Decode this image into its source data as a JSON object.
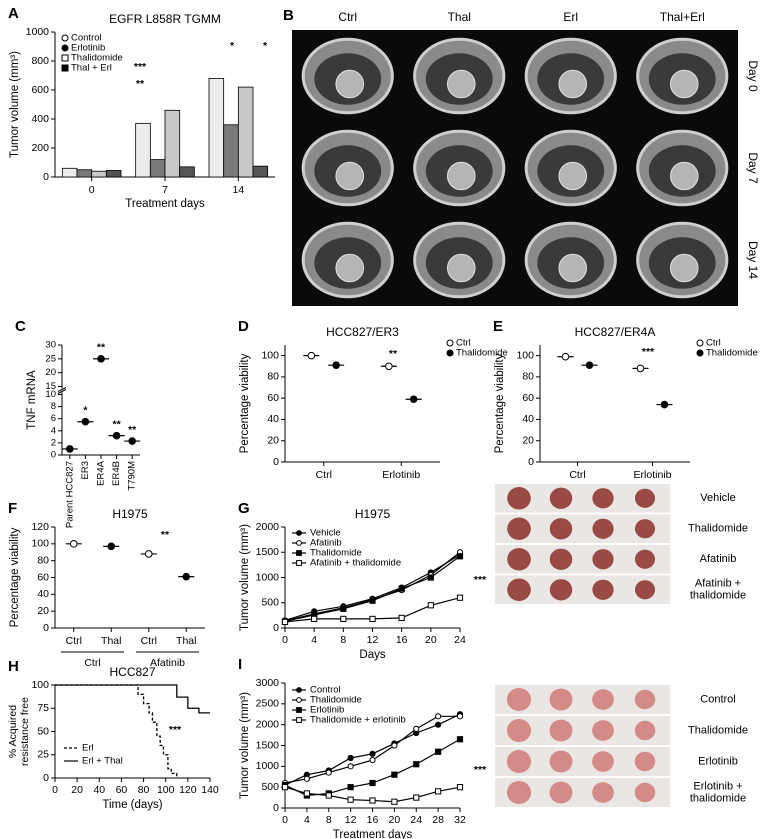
{
  "chart_data": [
    {
      "type": "bar",
      "label": "A",
      "title": "EGFR L858R TGMM",
      "x_label": "Treatment days",
      "y_label": "Tumor volume (mm³)",
      "categories": [
        "0",
        "7",
        "14"
      ],
      "series": [
        {
          "name": "Control",
          "color": "#ececec",
          "marker": "open circle",
          "values": [
            60,
            370,
            680
          ]
        },
        {
          "name": "Erlotinib",
          "color": "#7a7a7a",
          "marker": "filled circle",
          "values": [
            50,
            120,
            360
          ]
        },
        {
          "name": "Thalidomide",
          "color": "#c8c8c8",
          "marker": "open square",
          "values": [
            40,
            460,
            620
          ]
        },
        {
          "name": "Thal + Erl",
          "color": "#555555",
          "marker": "filled square",
          "values": [
            45,
            70,
            75
          ]
        }
      ],
      "ylim": [
        0,
        1000
      ],
      "yticks": [
        0,
        200,
        400,
        600,
        800,
        1000
      ],
      "annotations": [
        "***",
        "**",
        "*",
        "*"
      ]
    },
    {
      "type": "dot",
      "label": "C",
      "y_label": "TNF mRNA",
      "categories": [
        "Parent HCC827",
        "ER3",
        "ER4A",
        "ER4B",
        "T790M"
      ],
      "series": [
        {
          "color": "#000000",
          "marker": "filled circle",
          "values": [
            1,
            5.5,
            25,
            3.2,
            2.3
          ]
        }
      ],
      "significance": [
        null,
        "*",
        "**",
        "**",
        "**"
      ],
      "ylim": [
        0,
        30
      ],
      "axis_break": [
        10,
        15
      ],
      "yticks": [
        0,
        2,
        4,
        6,
        8,
        10,
        15,
        20,
        25,
        30
      ]
    },
    {
      "type": "dot",
      "label": "D",
      "title": "HCC827/ER3",
      "y_label": "Percentage viability",
      "categories": [
        "Ctrl",
        "Erlotinib"
      ],
      "series": [
        {
          "name": "Ctrl",
          "color": "#000000",
          "marker": "open circle",
          "values": [
            100,
            90
          ]
        },
        {
          "name": "Thalidomide",
          "color": "#000000",
          "marker": "filled circle",
          "values": [
            91,
            59
          ]
        }
      ],
      "ylim": [
        0,
        110
      ],
      "yticks": [
        0,
        20,
        40,
        60,
        80,
        100
      ],
      "annotations": [
        "**"
      ]
    },
    {
      "type": "dot",
      "label": "E",
      "title": "HCC827/ER4A",
      "y_label": "Percentage viability",
      "categories": [
        "Ctrl",
        "Erlotinib"
      ],
      "series": [
        {
          "name": "Ctrl",
          "color": "#000000",
          "marker": "open circle",
          "values": [
            99,
            88
          ]
        },
        {
          "name": "Thalidomide",
          "color": "#000000",
          "marker": "filled circle",
          "values": [
            91,
            54
          ]
        }
      ],
      "ylim": [
        0,
        110
      ],
      "yticks": [
        0,
        20,
        40,
        60,
        80,
        100
      ],
      "annotations": [
        "***"
      ]
    },
    {
      "type": "dot",
      "label": "F",
      "title": "H1975",
      "y_label": "Percentage viability",
      "categories": [
        "Ctrl",
        "Thal",
        "Ctrl",
        "Thal"
      ],
      "groups": [
        "Ctrl",
        "Afatinib"
      ],
      "series": [
        {
          "color": "#000000",
          "marker": "open circle",
          "values": [
            100,
            null,
            88,
            null
          ]
        },
        {
          "color": "#000000",
          "marker": "filled circle",
          "values": [
            null,
            97,
            null,
            61
          ]
        }
      ],
      "ylim": [
        0,
        120
      ],
      "yticks": [
        0,
        20,
        40,
        60,
        80,
        100,
        120
      ],
      "annotations": [
        "**"
      ]
    },
    {
      "type": "line",
      "label": "G",
      "title": "H1975",
      "x_label": "Days",
      "y_label": "Tumor volume (mm³)",
      "x": [
        0,
        4,
        8,
        12,
        16,
        20,
        24
      ],
      "series": [
        {
          "name": "Vehicle",
          "color": "#000000",
          "marker": "filled circle",
          "values": [
            150,
            330,
            430,
            580,
            800,
            1100,
            1450
          ]
        },
        {
          "name": "Afatinib",
          "color": "#000000",
          "marker": "open circle",
          "values": [
            140,
            280,
            400,
            560,
            750,
            1050,
            1500
          ]
        },
        {
          "name": "Thalidomide",
          "color": "#000000",
          "marker": "filled square",
          "values": [
            130,
            260,
            380,
            540,
            780,
            1000,
            1420
          ]
        },
        {
          "name": "Afatinib + thalidomide",
          "color": "#000000",
          "marker": "open square",
          "values": [
            120,
            180,
            180,
            180,
            200,
            450,
            600
          ]
        }
      ],
      "xlim": [
        0,
        24
      ],
      "xticks": [
        0,
        4,
        8,
        12,
        16,
        20,
        24
      ],
      "ylim": [
        0,
        2000
      ],
      "yticks": [
        0,
        500,
        1000,
        1500,
        2000
      ],
      "annotations": [
        "***"
      ]
    },
    {
      "type": "step",
      "label": "H",
      "title": "HCC827",
      "x_label": "Time (days)",
      "y_label": [
        "% Acquired",
        "resistance free"
      ],
      "series": [
        {
          "name": "Erl",
          "color": "#000000",
          "dashed": true,
          "x": [
            0,
            75,
            80,
            85,
            88,
            92,
            95,
            98,
            102,
            105,
            110
          ],
          "values": [
            100,
            90,
            80,
            70,
            60,
            45,
            35,
            25,
            10,
            5,
            0
          ]
        },
        {
          "name": "Erl + Thal",
          "color": "#000000",
          "dashed": false,
          "x": [
            0,
            110,
            120,
            130,
            140
          ],
          "values": [
            100,
            87,
            75,
            70,
            70
          ]
        }
      ],
      "xlim": [
        0,
        140
      ],
      "xticks": [
        0,
        20,
        40,
        60,
        80,
        100,
        120,
        140
      ],
      "ylim": [
        0,
        100
      ],
      "yticks": [
        0,
        25,
        50,
        75,
        100
      ],
      "annotations": [
        "***"
      ]
    },
    {
      "type": "line",
      "label": "I",
      "x_label": "Treatment days",
      "y_label": "Tumor volume (mm³)",
      "x": [
        0,
        4,
        8,
        12,
        16,
        20,
        24,
        28,
        32
      ],
      "series": [
        {
          "name": "Control",
          "color": "#000000",
          "marker": "filled circle",
          "values": [
            550,
            800,
            900,
            1200,
            1300,
            1550,
            1800,
            2000,
            2250
          ]
        },
        {
          "name": "Thalidomide",
          "color": "#000000",
          "marker": "open circle",
          "values": [
            600,
            700,
            850,
            1000,
            1150,
            1500,
            1900,
            2200,
            2200
          ]
        },
        {
          "name": "Erlotinib",
          "color": "#000000",
          "marker": "filled square",
          "values": [
            550,
            300,
            350,
            500,
            600,
            800,
            1050,
            1350,
            1650
          ]
        },
        {
          "name": "Thalidomide + erlotinib",
          "color": "#000000",
          "marker": "open square",
          "values": [
            500,
            350,
            300,
            200,
            180,
            150,
            250,
            400,
            500
          ]
        }
      ],
      "xlim": [
        0,
        32
      ],
      "xticks": [
        0,
        4,
        8,
        12,
        16,
        20,
        24,
        28,
        32
      ],
      "ylim": [
        0,
        3000
      ],
      "yticks": [
        0,
        500,
        1000,
        1500,
        2000,
        2500,
        3000
      ],
      "annotations": [
        "***"
      ]
    }
  ],
  "image_panels": [
    {
      "label": "B",
      "columns": [
        "Ctrl",
        "Thal",
        "Erl",
        "Thal+Erl"
      ],
      "rows": [
        [
          "Day 0"
        ],
        [
          "Day 7"
        ],
        [
          "Day 14"
        ]
      ]
    },
    {
      "rows": [
        [
          "Vehicle"
        ],
        [
          "Thalidomide"
        ],
        [
          "Afatinib"
        ],
        [
          "Afatinib +",
          "thalidomide"
        ]
      ]
    },
    {
      "rows": [
        [
          "Control"
        ],
        [
          "Thalidomide"
        ],
        [
          "Erlotinib"
        ],
        [
          "Erlotinib +",
          "thalidomide"
        ]
      ]
    }
  ]
}
